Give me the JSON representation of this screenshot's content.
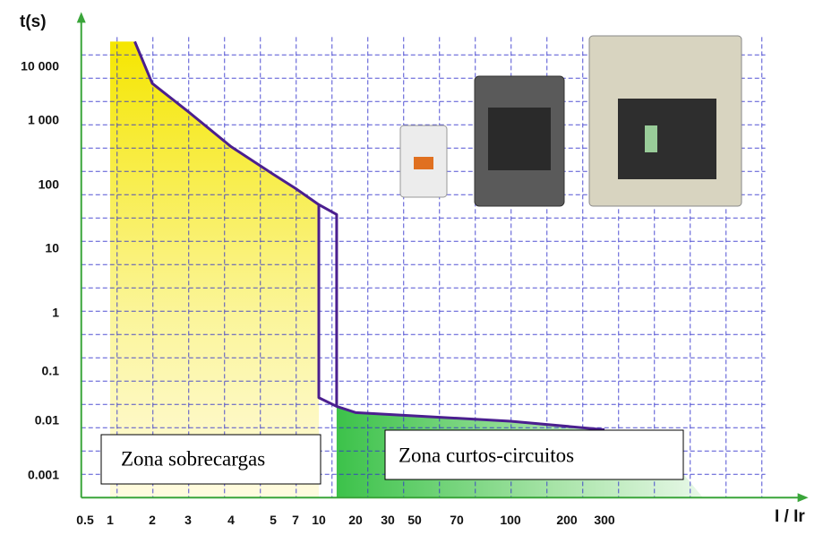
{
  "chart_data": {
    "type": "line",
    "y_label": "t(s)",
    "x_label": "I / Ir",
    "log_x": true,
    "log_y": true,
    "xlim": [
      0.45,
      2500
    ],
    "ylim": [
      0.0004,
      30000
    ],
    "xticks": [
      0.5,
      1,
      2,
      3,
      4,
      5,
      7,
      10,
      20,
      30,
      50,
      70,
      100,
      200,
      300
    ],
    "yticks": [
      {
        "value": 10000,
        "label": "10 000"
      },
      {
        "value": 1000,
        "label": "1 000"
      },
      100,
      10,
      1,
      0.1,
      0.01,
      0.001
    ],
    "grid": true,
    "series": [
      {
        "color": "#4b1f8f",
        "x": [
          1.5,
          2,
          3,
          4,
          5,
          7,
          10,
          10,
          14,
          20,
          100,
          300
        ],
        "values": [
          30000,
          5000,
          1500,
          400,
          150,
          90,
          50,
          0.03,
          0.02,
          0.015,
          0.01,
          0.007
        ]
      },
      {
        "color": "#4b1f8f",
        "x": [
          10,
          14,
          14
        ],
        "values": [
          50,
          35,
          0.02
        ]
      }
    ],
    "annotations": [
      "Zona sobrecargas",
      "Zona curtos-circuitos"
    ]
  }
}
